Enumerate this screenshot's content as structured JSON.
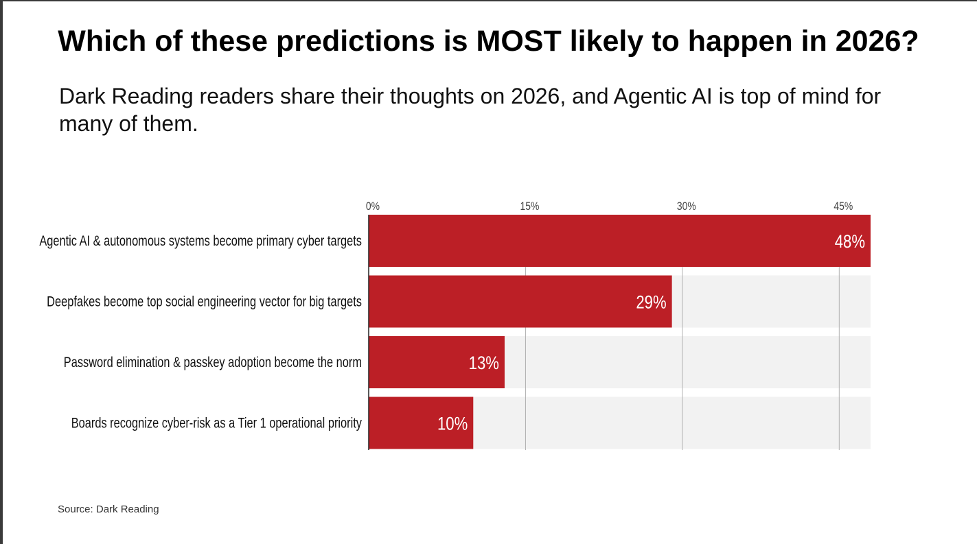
{
  "title": "Which of these predictions is MOST likely to happen in 2026?",
  "subtitle": "Dark Reading readers share their thoughts on 2026, and Agentic AI is top of mind for many of them.",
  "source": "Source: Dark Reading",
  "chart_data": {
    "type": "bar",
    "orientation": "horizontal",
    "categories": [
      "Agentic AI & autonomous systems become primary cyber targets",
      "Deepfakes become top social engineering vector for big targets",
      "Password elimination & passkey adoption become the norm",
      "Boards recognize cyber-risk as a Tier 1 operational priority"
    ],
    "values": [
      48,
      29,
      13,
      10
    ],
    "value_labels": [
      "48%",
      "29%",
      "13%",
      "10%"
    ],
    "xlim": [
      0,
      48
    ],
    "x_ticks": [
      0,
      15,
      30,
      45
    ],
    "x_tick_labels": [
      "0%",
      "15%",
      "30%",
      "45%"
    ],
    "grid": true,
    "bar_color": "#bc1f26",
    "track_color": "#f2f2f2",
    "grid_color": "#b0b0b0",
    "value_label_color": "#ffffff"
  }
}
